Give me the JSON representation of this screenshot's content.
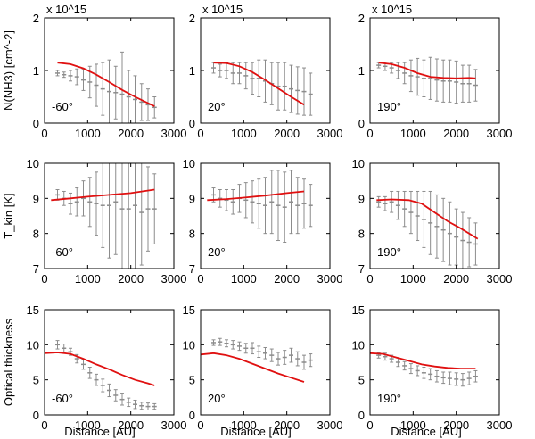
{
  "figure": {
    "columns": [
      "-60°",
      "20°",
      "190°"
    ],
    "x_axis_label": "Distance [AU]"
  },
  "chart_data": [
    {
      "type": "line",
      "row": 0,
      "col": 0,
      "panel_label": "-60°",
      "ylabel": "N(NH3) [cm^-2]",
      "scale_text": "x 10^15",
      "xlim": [
        0,
        3000
      ],
      "ylim": [
        0,
        2
      ],
      "xticks": [
        0,
        1000,
        2000,
        3000
      ],
      "yticks": [
        0,
        1,
        2
      ],
      "model": {
        "x": [
          300,
          600,
          900,
          1200,
          1500,
          1800,
          2100,
          2400,
          2550
        ],
        "y": [
          1.15,
          1.12,
          1.04,
          0.92,
          0.78,
          0.63,
          0.5,
          0.38,
          0.32
        ]
      },
      "observed": {
        "x": [
          300,
          450,
          600,
          750,
          900,
          1050,
          1200,
          1350,
          1500,
          1650,
          1800,
          1950,
          2100,
          2250,
          2400,
          2550
        ],
        "y": [
          0.95,
          0.92,
          0.9,
          0.88,
          0.82,
          0.78,
          0.72,
          0.65,
          0.6,
          0.58,
          0.55,
          0.5,
          0.45,
          0.4,
          0.35,
          0.3
        ],
        "err": [
          0.05,
          0.05,
          0.1,
          0.15,
          0.2,
          0.3,
          0.4,
          0.5,
          0.6,
          0.5,
          0.8,
          0.5,
          0.45,
          0.35,
          0.3,
          0.2
        ]
      }
    },
    {
      "type": "line",
      "row": 0,
      "col": 1,
      "panel_label": "20°",
      "scale_text": "x 10^15",
      "xlim": [
        0,
        3000
      ],
      "ylim": [
        0,
        2
      ],
      "xticks": [
        0,
        1000,
        2000,
        3000
      ],
      "yticks": [
        0,
        1,
        2
      ],
      "model": {
        "x": [
          300,
          600,
          900,
          1200,
          1500,
          1800,
          2100,
          2400
        ],
        "y": [
          1.15,
          1.14,
          1.08,
          0.97,
          0.82,
          0.66,
          0.5,
          0.35
        ]
      },
      "observed": {
        "x": [
          300,
          450,
          600,
          750,
          900,
          1050,
          1200,
          1350,
          1500,
          1650,
          1800,
          1950,
          2100,
          2250,
          2400,
          2550
        ],
        "y": [
          1.05,
          1.0,
          1.0,
          0.95,
          0.95,
          0.9,
          0.85,
          0.85,
          0.8,
          0.75,
          0.7,
          0.7,
          0.65,
          0.62,
          0.6,
          0.55
        ],
        "err": [
          0.1,
          0.12,
          0.15,
          0.2,
          0.2,
          0.25,
          0.3,
          0.35,
          0.4,
          0.4,
          0.45,
          0.45,
          0.45,
          0.45,
          0.45,
          0.4
        ]
      }
    },
    {
      "type": "line",
      "row": 0,
      "col": 2,
      "panel_label": "190°",
      "scale_text": "x 10^15",
      "xlim": [
        0,
        3000
      ],
      "ylim": [
        0,
        2
      ],
      "xticks": [
        0,
        1000,
        2000,
        3000
      ],
      "yticks": [
        0,
        1,
        2
      ],
      "model": {
        "x": [
          200,
          500,
          800,
          1100,
          1400,
          1700,
          2000,
          2300,
          2450
        ],
        "y": [
          1.15,
          1.12,
          1.05,
          0.95,
          0.88,
          0.86,
          0.85,
          0.86,
          0.85
        ]
      },
      "observed": {
        "x": [
          200,
          350,
          500,
          650,
          800,
          950,
          1100,
          1250,
          1400,
          1550,
          1700,
          1850,
          2000,
          2150,
          2300,
          2450
        ],
        "y": [
          1.1,
          1.08,
          1.05,
          1.0,
          0.95,
          0.9,
          0.88,
          0.85,
          0.85,
          0.82,
          0.8,
          0.8,
          0.78,
          0.75,
          0.75,
          0.72
        ],
        "err": [
          0.05,
          0.08,
          0.1,
          0.15,
          0.2,
          0.3,
          0.35,
          0.35,
          0.4,
          0.4,
          0.4,
          0.4,
          0.4,
          0.35,
          0.35,
          0.3
        ]
      }
    },
    {
      "type": "line",
      "row": 1,
      "col": 0,
      "panel_label": "-60°",
      "ylabel": "T_kin [K]",
      "xlim": [
        0,
        3000
      ],
      "ylim": [
        7,
        10
      ],
      "xticks": [
        0,
        1000,
        2000,
        3000
      ],
      "yticks": [
        7,
        8,
        9,
        10
      ],
      "model": {
        "x": [
          150,
          600,
          1000,
          1500,
          2000,
          2550
        ],
        "y": [
          8.95,
          9.0,
          9.05,
          9.1,
          9.15,
          9.25
        ]
      },
      "observed": {
        "x": [
          300,
          450,
          600,
          750,
          900,
          1050,
          1200,
          1350,
          1500,
          1650,
          1800,
          1950,
          2100,
          2250,
          2400,
          2550
        ],
        "y": [
          9.1,
          9.0,
          8.85,
          8.9,
          9.0,
          8.9,
          8.85,
          8.8,
          8.8,
          8.9,
          8.7,
          8.7,
          8.8,
          8.6,
          8.7,
          8.7
        ],
        "err": [
          0.15,
          0.2,
          0.3,
          0.4,
          0.5,
          0.7,
          0.9,
          1.2,
          1.5,
          1.5,
          2.0,
          1.8,
          1.8,
          1.5,
          1.2,
          1.0
        ]
      }
    },
    {
      "type": "line",
      "row": 1,
      "col": 1,
      "panel_label": "20°",
      "xlim": [
        0,
        3000
      ],
      "ylim": [
        7,
        10
      ],
      "xticks": [
        0,
        1000,
        2000,
        3000
      ],
      "yticks": [
        7,
        8,
        9,
        10
      ],
      "model": {
        "x": [
          150,
          600,
          1000,
          1500,
          2000,
          2400
        ],
        "y": [
          8.95,
          8.98,
          9.02,
          9.08,
          9.15,
          9.2
        ]
      },
      "observed": {
        "x": [
          300,
          450,
          600,
          750,
          900,
          1050,
          1200,
          1350,
          1500,
          1650,
          1800,
          1950,
          2100,
          2250,
          2400,
          2550
        ],
        "y": [
          9.1,
          9.0,
          8.95,
          8.9,
          9.0,
          8.95,
          8.9,
          8.85,
          8.8,
          8.9,
          8.8,
          8.75,
          8.9,
          8.8,
          8.85,
          8.8
        ],
        "err": [
          0.2,
          0.25,
          0.3,
          0.35,
          0.4,
          0.5,
          0.6,
          0.7,
          0.8,
          0.9,
          1.0,
          1.0,
          0.9,
          0.8,
          0.7,
          0.6
        ]
      }
    },
    {
      "type": "line",
      "row": 1,
      "col": 2,
      "panel_label": "190°",
      "xlim": [
        0,
        3000
      ],
      "ylim": [
        7,
        10
      ],
      "xticks": [
        0,
        1000,
        2000,
        3000
      ],
      "yticks": [
        7,
        8,
        9,
        10
      ],
      "model": {
        "x": [
          150,
          500,
          900,
          1200,
          1500,
          1800,
          2100,
          2500
        ],
        "y": [
          8.95,
          8.97,
          8.95,
          8.85,
          8.6,
          8.35,
          8.15,
          7.85
        ]
      },
      "observed": {
        "x": [
          200,
          350,
          500,
          650,
          800,
          950,
          1100,
          1250,
          1400,
          1550,
          1700,
          1850,
          2000,
          2150,
          2300,
          2450
        ],
        "y": [
          8.9,
          8.85,
          8.9,
          8.8,
          8.7,
          8.6,
          8.5,
          8.4,
          8.3,
          8.2,
          8.1,
          8.0,
          7.9,
          7.8,
          7.75,
          7.7
        ],
        "err": [
          0.15,
          0.2,
          0.3,
          0.4,
          0.5,
          0.6,
          0.7,
          0.8,
          0.9,
          0.9,
          0.9,
          0.9,
          0.8,
          0.8,
          0.7,
          0.6
        ]
      }
    },
    {
      "type": "line",
      "row": 2,
      "col": 0,
      "panel_label": "-60°",
      "ylabel": "Optical thickness",
      "xlim": [
        0,
        3000
      ],
      "ylim": [
        0,
        15
      ],
      "xticks": [
        0,
        1000,
        2000,
        3000
      ],
      "yticks": [
        0,
        5,
        10,
        15
      ],
      "model": {
        "x": [
          0,
          300,
          600,
          900,
          1200,
          1500,
          1800,
          2100,
          2400,
          2550
        ],
        "y": [
          8.8,
          8.9,
          8.7,
          8.0,
          7.2,
          6.5,
          5.7,
          5.0,
          4.5,
          4.2
        ]
      },
      "observed": {
        "x": [
          300,
          450,
          600,
          750,
          900,
          1050,
          1200,
          1350,
          1500,
          1650,
          1800,
          1950,
          2100,
          2250,
          2400,
          2550
        ],
        "y": [
          10.0,
          9.5,
          9.0,
          8.0,
          7.2,
          6.0,
          5.0,
          4.2,
          3.5,
          2.8,
          2.2,
          1.8,
          1.5,
          1.3,
          1.2,
          1.2
        ],
        "err": [
          0.6,
          0.6,
          0.5,
          0.6,
          0.7,
          0.8,
          0.8,
          0.9,
          0.9,
          0.8,
          0.8,
          0.6,
          0.6,
          0.5,
          0.5,
          0.4
        ]
      }
    },
    {
      "type": "line",
      "row": 2,
      "col": 1,
      "panel_label": "20°",
      "xlim": [
        0,
        3000
      ],
      "ylim": [
        0,
        15
      ],
      "xticks": [
        0,
        1000,
        2000,
        3000
      ],
      "yticks": [
        0,
        5,
        10,
        15
      ],
      "model": {
        "x": [
          0,
          300,
          600,
          900,
          1200,
          1500,
          1800,
          2100,
          2400
        ],
        "y": [
          8.6,
          8.8,
          8.5,
          8.0,
          7.3,
          6.6,
          5.9,
          5.3,
          4.7
        ]
      },
      "observed": {
        "x": [
          300,
          450,
          600,
          750,
          900,
          1050,
          1200,
          1350,
          1500,
          1650,
          1800,
          1950,
          2100,
          2250,
          2400,
          2550
        ],
        "y": [
          10.3,
          10.4,
          10.2,
          10.0,
          9.8,
          9.5,
          9.5,
          9.0,
          8.8,
          8.5,
          8.0,
          8.2,
          8.5,
          8.0,
          7.5,
          7.8
        ],
        "err": [
          0.4,
          0.5,
          0.5,
          0.6,
          0.6,
          0.7,
          0.8,
          0.8,
          0.8,
          0.9,
          0.9,
          1.0,
          1.0,
          1.0,
          1.0,
          0.9
        ]
      }
    },
    {
      "type": "line",
      "row": 2,
      "col": 2,
      "panel_label": "190°",
      "xlim": [
        0,
        3000
      ],
      "ylim": [
        0,
        15
      ],
      "xticks": [
        0,
        1000,
        2000,
        3000
      ],
      "yticks": [
        0,
        5,
        10,
        15
      ],
      "model": {
        "x": [
          0,
          300,
          600,
          900,
          1200,
          1500,
          1800,
          2100,
          2450
        ],
        "y": [
          8.8,
          8.7,
          8.2,
          7.7,
          7.2,
          6.9,
          6.7,
          6.6,
          6.6
        ]
      },
      "observed": {
        "x": [
          200,
          350,
          500,
          650,
          800,
          950,
          1100,
          1250,
          1400,
          1550,
          1700,
          1850,
          2000,
          2150,
          2300,
          2450
        ],
        "y": [
          8.5,
          8.3,
          8.0,
          7.5,
          7.0,
          6.6,
          6.3,
          6.0,
          5.8,
          5.5,
          5.3,
          5.2,
          5.1,
          5.0,
          5.2,
          5.5
        ],
        "err": [
          0.4,
          0.5,
          0.5,
          0.6,
          0.6,
          0.7,
          0.7,
          0.8,
          0.8,
          0.8,
          0.8,
          0.9,
          0.9,
          0.9,
          0.9,
          0.8
        ]
      }
    }
  ]
}
